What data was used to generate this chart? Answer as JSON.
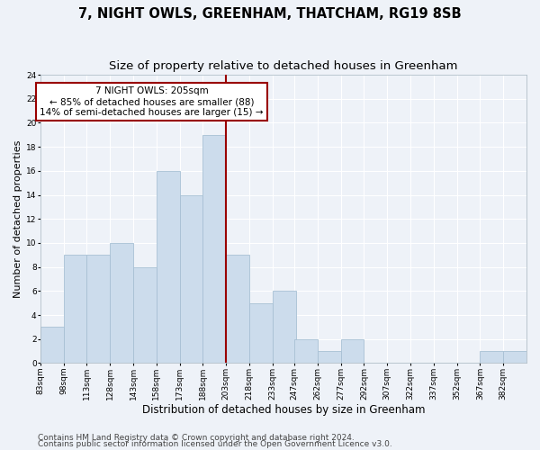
{
  "title": "7, NIGHT OWLS, GREENHAM, THATCHAM, RG19 8SB",
  "subtitle": "Size of property relative to detached houses in Greenham",
  "xlabel": "Distribution of detached houses by size in Greenham",
  "ylabel": "Number of detached properties",
  "bar_color": "#ccdcec",
  "bar_edge_color": "#a8c0d4",
  "background_color": "#eef2f8",
  "grid_color": "#ffffff",
  "vline_color": "#990000",
  "vline_x": 203,
  "annotation_text": "7 NIGHT OWLS: 205sqm\n← 85% of detached houses are smaller (88)\n14% of semi-detached houses are larger (15) →",
  "annotation_box_color": "#ffffff",
  "annotation_border_color": "#990000",
  "categories": [
    "83sqm",
    "98sqm",
    "113sqm",
    "128sqm",
    "143sqm",
    "158sqm",
    "173sqm",
    "188sqm",
    "203sqm",
    "218sqm",
    "233sqm",
    "247sqm",
    "262sqm",
    "277sqm",
    "292sqm",
    "307sqm",
    "322sqm",
    "337sqm",
    "352sqm",
    "367sqm",
    "382sqm"
  ],
  "bin_edges": [
    83,
    98,
    113,
    128,
    143,
    158,
    173,
    188,
    203,
    218,
    233,
    247,
    262,
    277,
    292,
    307,
    322,
    337,
    352,
    367,
    382
  ],
  "values": [
    3,
    9,
    9,
    10,
    8,
    16,
    14,
    19,
    9,
    5,
    6,
    2,
    1,
    2,
    0,
    0,
    0,
    0,
    0,
    1,
    1
  ],
  "ylim": [
    0,
    24
  ],
  "yticks": [
    0,
    2,
    4,
    6,
    8,
    10,
    12,
    14,
    16,
    18,
    20,
    22,
    24
  ],
  "footer1": "Contains HM Land Registry data © Crown copyright and database right 2024.",
  "footer2": "Contains public sector information licensed under the Open Government Licence v3.0.",
  "title_fontsize": 10.5,
  "subtitle_fontsize": 9.5,
  "ylabel_fontsize": 8,
  "xlabel_fontsize": 8.5,
  "tick_fontsize": 6.5,
  "annot_fontsize": 7.5,
  "footer_fontsize": 6.5
}
